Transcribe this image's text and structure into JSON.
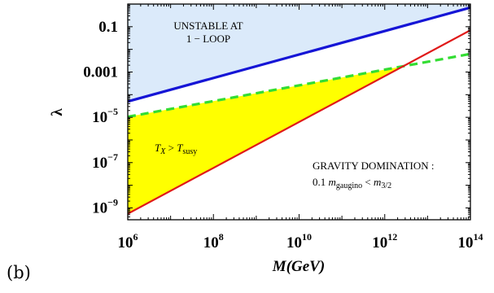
{
  "chart_data": {
    "type": "line",
    "xscale": "log",
    "yscale": "log",
    "xlim": [
      1000000,
      100000000000000
    ],
    "ylim": [
      3e-10,
      1
    ],
    "xlabel": "M(GeV)",
    "ylabel": "λ",
    "x_ticks": [
      {
        "value": 1000000,
        "base": "10",
        "exp": "6"
      },
      {
        "value": 100000000,
        "base": "10",
        "exp": "8"
      },
      {
        "value": 10000000000,
        "base": "10",
        "exp": "10"
      },
      {
        "value": 1000000000000,
        "base": "10",
        "exp": "12"
      },
      {
        "value": 100000000000000,
        "base": "10",
        "exp": "14"
      }
    ],
    "y_ticks": [
      {
        "value": 0.1,
        "text": "0.1"
      },
      {
        "value": 0.001,
        "text": "0.001"
      },
      {
        "value": 1e-05,
        "base": "10",
        "exp": "−5"
      },
      {
        "value": 1e-07,
        "base": "10",
        "exp": "−7"
      },
      {
        "value": 1e-09,
        "base": "10",
        "exp": "−9"
      }
    ],
    "series": [
      {
        "id": "blue",
        "color": "#1515d6",
        "style": "solid",
        "x": [
          1000000,
          100000000000000
        ],
        "y": [
          5e-05,
          0.7
        ]
      },
      {
        "id": "green",
        "color": "#33dd33",
        "style": "dashed",
        "x": [
          1000000,
          100000000000000
        ],
        "y": [
          1.05e-05,
          0.0063
        ]
      },
      {
        "id": "red",
        "color": "#e01919",
        "style": "solid",
        "x": [
          1000000,
          100000000000000
        ],
        "y": [
          5.5e-10,
          0.07
        ]
      }
    ],
    "regions": [
      {
        "id": "unstable",
        "color": "#dbeafa",
        "between": [
          "blue",
          "top"
        ]
      },
      {
        "id": "thermal",
        "color": "#ffff00",
        "between": [
          "red",
          "green"
        ]
      }
    ],
    "annotations": {
      "unstable_line1": "UNSTABLE AT",
      "unstable_line2": "1 − LOOP",
      "tx_left": "T",
      "tx_left_sub": "X",
      "tx_rel": " > ",
      "tx_right": "T",
      "tx_right_sub": "susy",
      "gravity_line1": "GRAVITY DOMINATION :",
      "gravity_num": "0.1 ",
      "gravity_m1": "m",
      "gravity_m1_sub": "gaugino",
      "gravity_rel": " < ",
      "gravity_m2": "m",
      "gravity_m2_sub": "3/2"
    },
    "panel_tag": "(b)"
  }
}
